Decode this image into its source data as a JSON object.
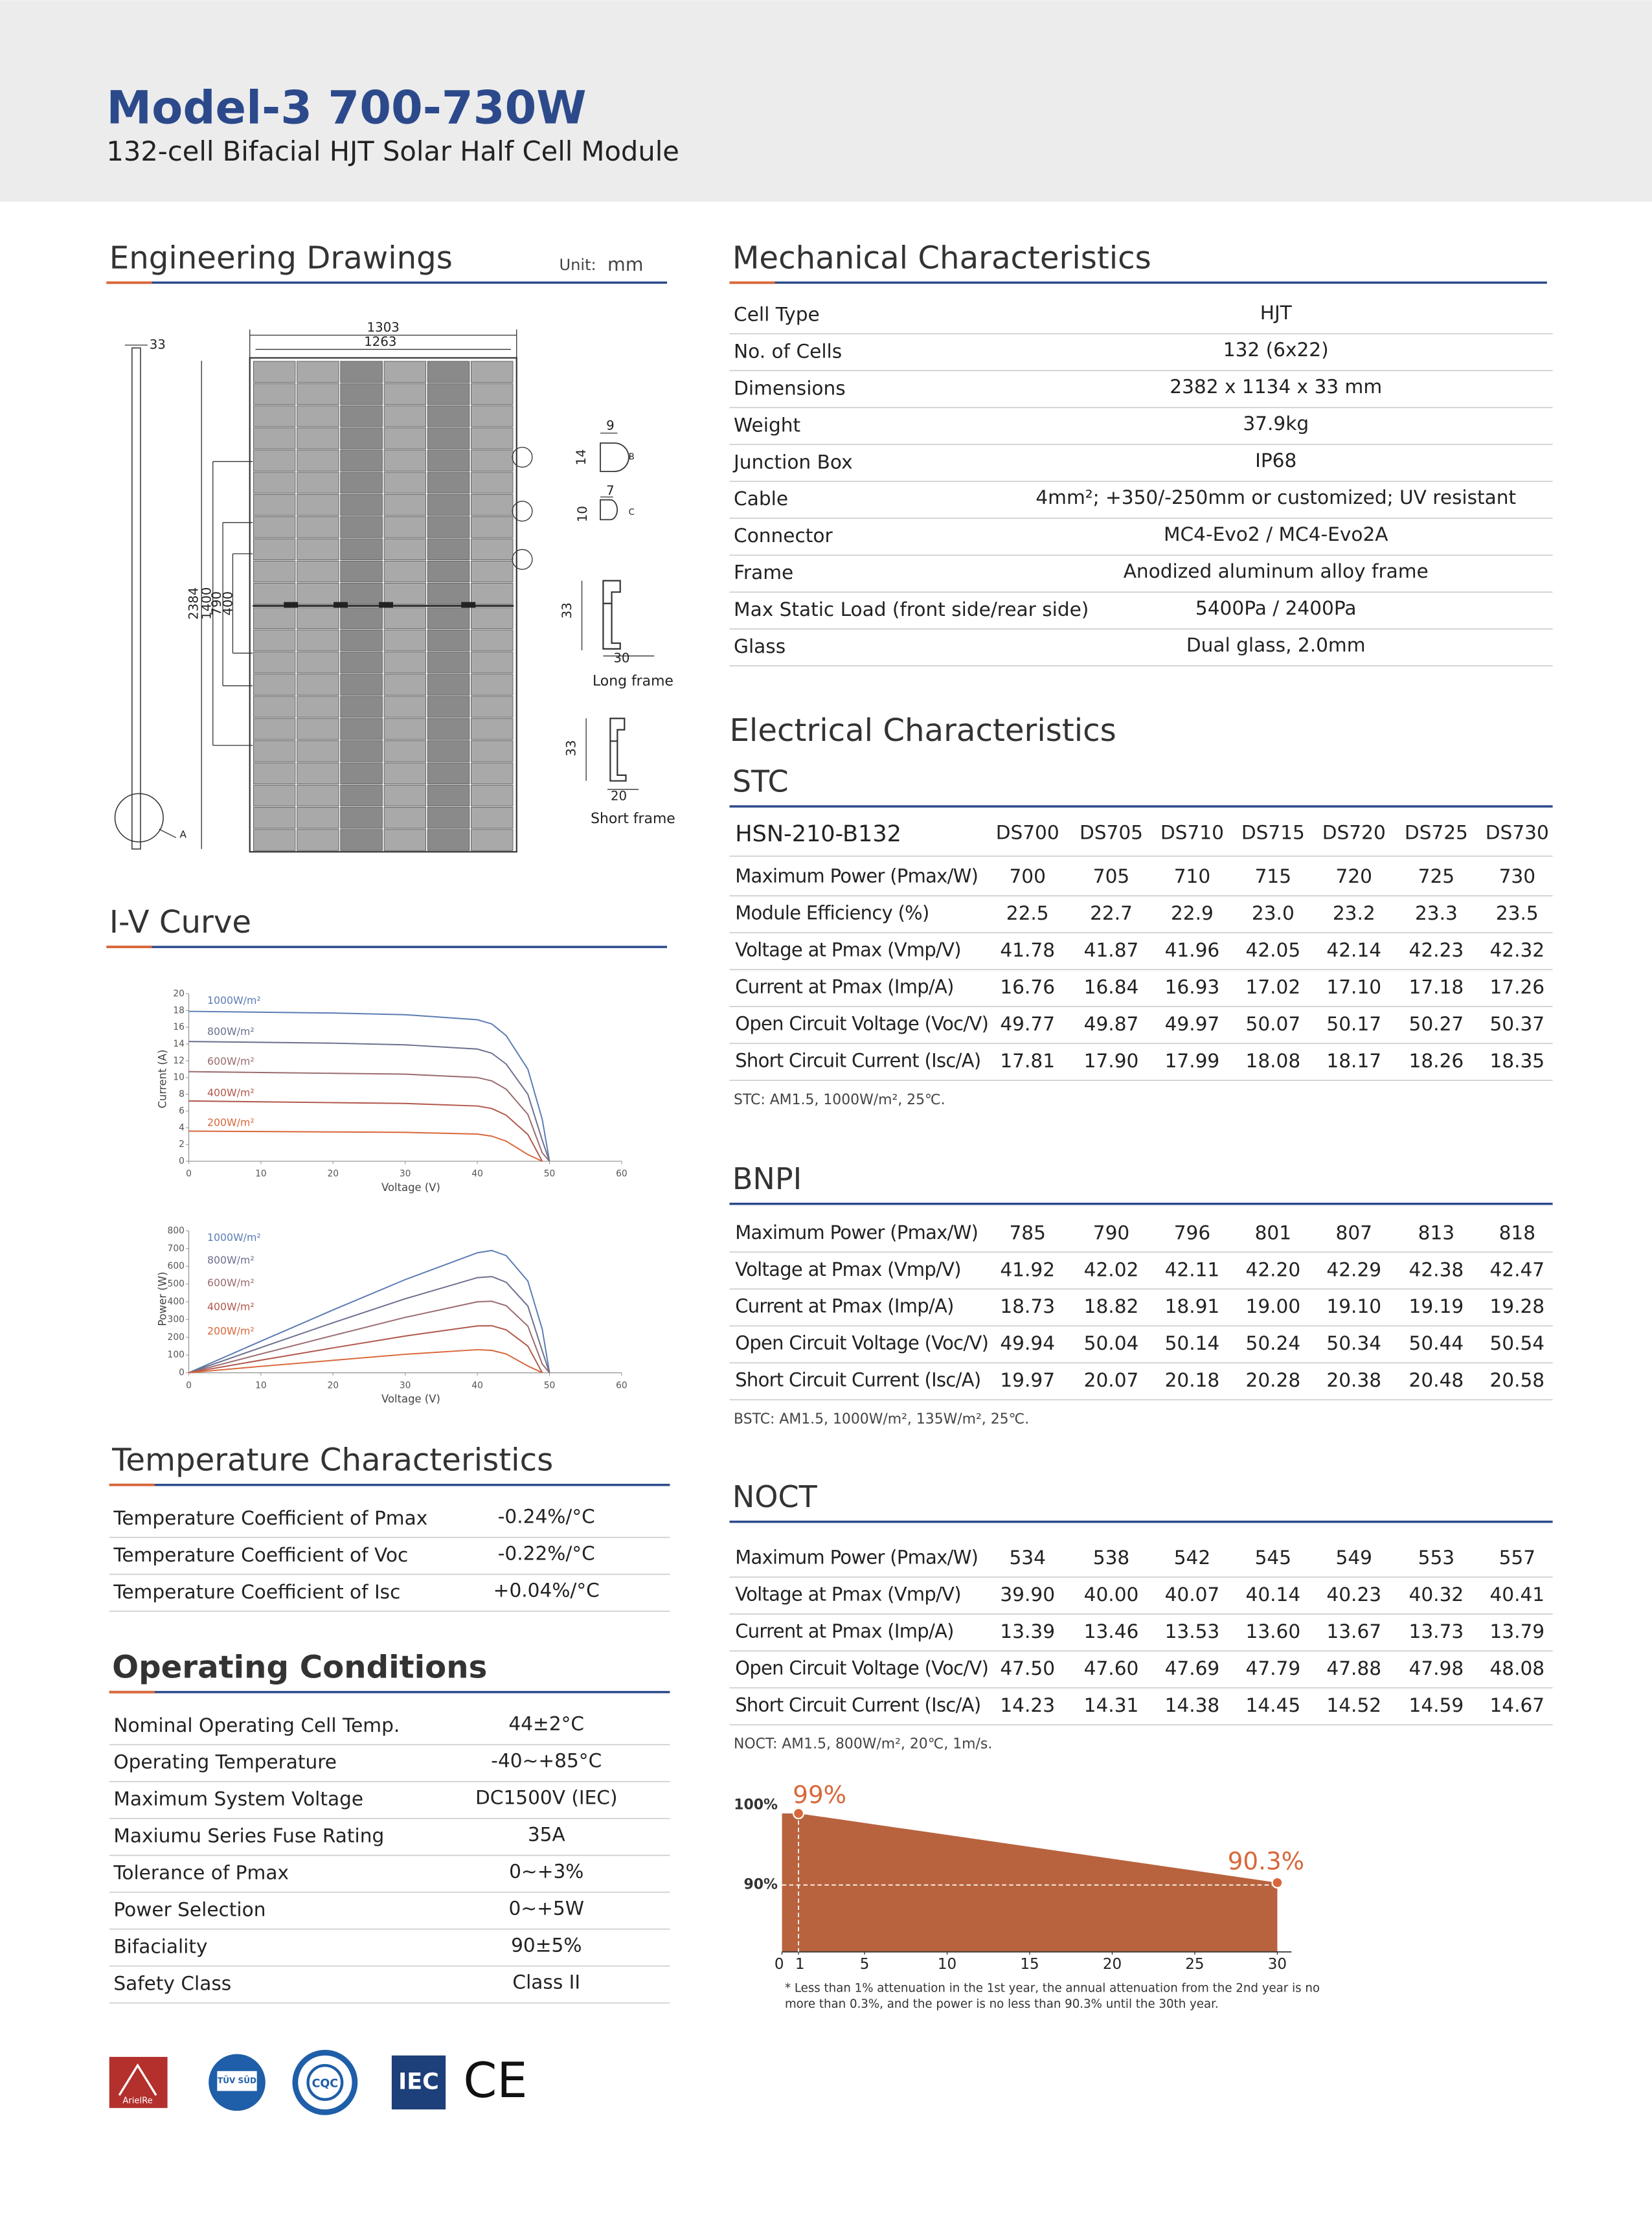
{
  "header": {
    "title": "Model-3 700-730W",
    "subtitle": "132-cell Bifacial HJT Solar Half Cell Module"
  },
  "engineering": {
    "title": "Engineering Drawings",
    "unit_label": "Unit:",
    "unit": "mm",
    "labels": {
      "frame_thickness": "33",
      "outer_width": "1303",
      "inner_width": "1263",
      "length": "2384",
      "mount_1": "1400",
      "mount_2": "790",
      "mount_3": "400",
      "detail_b_w": "9",
      "detail_b_h": "14",
      "detail_b": "B",
      "detail_c_w": "7",
      "detail_c_h": "10",
      "detail_c": "C",
      "long_frame_h": "33",
      "long_frame_w": "30",
      "long_frame": "Long frame",
      "short_frame_h": "33",
      "short_frame_w": "20",
      "short_frame": "Short frame",
      "detail_a": "A"
    }
  },
  "iv_curve": {
    "title": "I-V Curve"
  },
  "temperature": {
    "title": "Temperature Characteristics",
    "rows": [
      [
        "Temperature Coefficient of Pmax",
        "-0.24%/°C"
      ],
      [
        "Temperature Coefficient of Voc",
        "-0.22%/°C"
      ],
      [
        "Temperature Coefficient of Isc",
        "+0.04%/°C"
      ]
    ]
  },
  "operating": {
    "title": "Operating Conditions",
    "rows": [
      [
        "Nominal Operating Cell Temp.",
        "44±2°C"
      ],
      [
        "Operating Temperature",
        "-40~+85°C"
      ],
      [
        "Maximum System Voltage",
        "DC1500V (IEC)"
      ],
      [
        "Maxiumu Series Fuse Rating",
        "35A"
      ],
      [
        "Tolerance of Pmax",
        "0~+3%"
      ],
      [
        "Power Selection",
        "0~+5W"
      ],
      [
        "Bifaciality",
        "90±5%"
      ],
      [
        "Safety Class",
        "Class II"
      ]
    ]
  },
  "mechanical": {
    "title": "Mechanical Characteristics",
    "rows": [
      [
        "Cell Type",
        "HJT"
      ],
      [
        "No. of Cells",
        "132 (6x22)"
      ],
      [
        "Dimensions",
        "2382 x 1134 x 33 mm"
      ],
      [
        "Weight",
        "37.9kg"
      ],
      [
        "Junction Box",
        "IP68"
      ],
      [
        "Cable",
        "4mm²; +350/-250mm or customized; UV resistant"
      ],
      [
        "Connector",
        "MC4-Evo2 / MC4-Evo2A"
      ],
      [
        "Frame",
        "Anodized aluminum alloy frame"
      ],
      [
        "Max Static Load (front side/rear side)",
        "5400Pa / 2400Pa"
      ],
      [
        "Glass",
        "Dual glass, 2.0mm"
      ]
    ]
  },
  "electrical": {
    "title": "Electrical Characteristics",
    "model": "HSN-210-B132",
    "columns": [
      "DS700",
      "DS705",
      "DS710",
      "DS715",
      "DS720",
      "DS725",
      "DS730"
    ],
    "stc": {
      "title": "STC",
      "rows": [
        [
          "Maximum Power (Pmax/W)",
          "700",
          "705",
          "710",
          "715",
          "720",
          "725",
          "730"
        ],
        [
          "Module Efficiency (%)",
          "22.5",
          "22.7",
          "22.9",
          "23.0",
          "23.2",
          "23.3",
          "23.5"
        ],
        [
          "Voltage at Pmax (Vmp/V)",
          "41.78",
          "41.87",
          "41.96",
          "42.05",
          "42.14",
          "42.23",
          "42.32"
        ],
        [
          "Current at Pmax (Imp/A)",
          "16.76",
          "16.84",
          "16.93",
          "17.02",
          "17.10",
          "17.18",
          "17.26"
        ],
        [
          "Open Circuit Voltage (Voc/V)",
          "49.77",
          "49.87",
          "49.97",
          "50.07",
          "50.17",
          "50.27",
          "50.37"
        ],
        [
          "Short Circuit Current (Isc/A)",
          "17.81",
          "17.90",
          "17.99",
          "18.08",
          "18.17",
          "18.26",
          "18.35"
        ]
      ],
      "note": "STC: AM1.5, 1000W/m², 25℃."
    },
    "bnpi": {
      "title": "BNPI",
      "rows": [
        [
          "Maximum Power (Pmax/W)",
          "785",
          "790",
          "796",
          "801",
          "807",
          "813",
          "818"
        ],
        [
          "Voltage at Pmax (Vmp/V)",
          "41.92",
          "42.02",
          "42.11",
          "42.20",
          "42.29",
          "42.38",
          "42.47"
        ],
        [
          "Current at Pmax (Imp/A)",
          "18.73",
          "18.82",
          "18.91",
          "19.00",
          "19.10",
          "19.19",
          "19.28"
        ],
        [
          "Open Circuit Voltage (Voc/V)",
          "49.94",
          "50.04",
          "50.14",
          "50.24",
          "50.34",
          "50.44",
          "50.54"
        ],
        [
          "Short Circuit Current (Isc/A)",
          "19.97",
          "20.07",
          "20.18",
          "20.28",
          "20.38",
          "20.48",
          "20.58"
        ]
      ],
      "note": "BSTC:  AM1.5, 1000W/m², 135W/m², 25℃."
    },
    "noct": {
      "title": "NOCT",
      "rows": [
        [
          "Maximum Power (Pmax/W)",
          "534",
          "538",
          "542",
          "545",
          "549",
          "553",
          "557"
        ],
        [
          "Voltage at Pmax (Vmp/V)",
          "39.90",
          "40.00",
          "40.07",
          "40.14",
          "40.23",
          "40.32",
          "40.41"
        ],
        [
          "Current at Pmax (Imp/A)",
          "13.39",
          "13.46",
          "13.53",
          "13.60",
          "13.67",
          "13.73",
          "13.79"
        ],
        [
          "Open Circuit Voltage (Voc/V)",
          "47.50",
          "47.60",
          "47.69",
          "47.79",
          "47.88",
          "47.98",
          "48.08"
        ],
        [
          "Short Circuit Current (Isc/A)",
          "14.23",
          "14.31",
          "14.38",
          "14.45",
          "14.52",
          "14.59",
          "14.67"
        ]
      ],
      "note": "NOCT: AM1.5,  800W/m², 20℃, 1m/s."
    }
  },
  "logos": [
    "ArielRe",
    "TÜV SÜD",
    "CQC",
    "IEC",
    "CE"
  ],
  "chart_data": [
    {
      "type": "line",
      "xlabel": "Voltage (V)",
      "ylabel": "Current (A)",
      "x": [
        0,
        10,
        20,
        30,
        40,
        42,
        44,
        47,
        49,
        50
      ],
      "xlim": [
        0,
        60
      ],
      "ylim": [
        0,
        20
      ],
      "xticks": [
        0,
        10,
        20,
        30,
        40,
        50,
        60
      ],
      "yticks": [
        0,
        2,
        4,
        6,
        8,
        10,
        12,
        14,
        16,
        18,
        20
      ],
      "series": [
        {
          "name": "1000W/m²",
          "color": "#5b7cb3",
          "values": [
            17.9,
            17.8,
            17.7,
            17.5,
            16.9,
            16.4,
            15.0,
            11.0,
            5.0,
            0
          ]
        },
        {
          "name": "800W/m²",
          "color": "#6b6f8e",
          "values": [
            14.3,
            14.2,
            14.1,
            13.9,
            13.4,
            12.9,
            11.6,
            8.0,
            2.5,
            0
          ]
        },
        {
          "name": "600W/m²",
          "color": "#9a6a6e",
          "values": [
            10.7,
            10.6,
            10.5,
            10.4,
            10.0,
            9.6,
            8.6,
            5.6,
            1.0,
            0
          ]
        },
        {
          "name": "400W/m²",
          "color": "#b0574a",
          "values": [
            7.2,
            7.1,
            7.0,
            6.9,
            6.6,
            6.3,
            5.5,
            3.2,
            0,
            null
          ]
        },
        {
          "name": "200W/m²",
          "color": "#d9673a",
          "values": [
            3.6,
            3.55,
            3.5,
            3.45,
            3.25,
            3.0,
            2.4,
            0.8,
            0,
            null
          ]
        }
      ]
    },
    {
      "type": "line",
      "xlabel": "Voltage (V)",
      "ylabel": "Power (W)",
      "x": [
        0,
        10,
        20,
        30,
        40,
        42,
        44,
        47,
        49,
        50
      ],
      "xlim": [
        0,
        60
      ],
      "ylim": [
        0,
        800
      ],
      "xticks": [
        0,
        10,
        20,
        30,
        40,
        50,
        60
      ],
      "yticks": [
        0,
        100,
        200,
        300,
        400,
        500,
        600,
        700,
        800
      ],
      "series": [
        {
          "name": "1000W/m²",
          "color": "#5b7cb3",
          "values": [
            0,
            178,
            354,
            525,
            676,
            689,
            660,
            517,
            245,
            0
          ]
        },
        {
          "name": "800W/m²",
          "color": "#6b6f8e",
          "values": [
            0,
            142,
            282,
            417,
            536,
            542,
            510,
            376,
            123,
            0
          ]
        },
        {
          "name": "600W/m²",
          "color": "#9a6a6e",
          "values": [
            0,
            106,
            210,
            312,
            400,
            403,
            378,
            263,
            49,
            0
          ]
        },
        {
          "name": "400W/m²",
          "color": "#b0574a",
          "values": [
            0,
            71,
            140,
            207,
            264,
            265,
            242,
            150,
            0,
            null
          ]
        },
        {
          "name": "200W/m²",
          "color": "#d9673a",
          "values": [
            0,
            36,
            70,
            104,
            130,
            126,
            106,
            38,
            0,
            null
          ]
        }
      ]
    },
    {
      "type": "area",
      "x": [
        1,
        30
      ],
      "values": [
        99,
        90.3
      ],
      "value_labels": [
        "99%",
        "90.3%"
      ],
      "color": "#b8633e",
      "xlim": [
        0,
        30
      ],
      "ylim": [
        81.6,
        103.9
      ],
      "xticks": [
        0,
        1,
        5,
        10,
        15,
        20,
        25,
        30
      ],
      "yticks": [
        {
          "value": 100,
          "label": "100%"
        },
        {
          "value": 90,
          "label": "90%"
        }
      ],
      "footnote": [
        "* Less than 1% attenuation in the 1st year, the annual attenuation from the 2nd year is no",
        "more than 0.3%, and the power is no less than 90.3% until the 30th year."
      ]
    }
  ]
}
